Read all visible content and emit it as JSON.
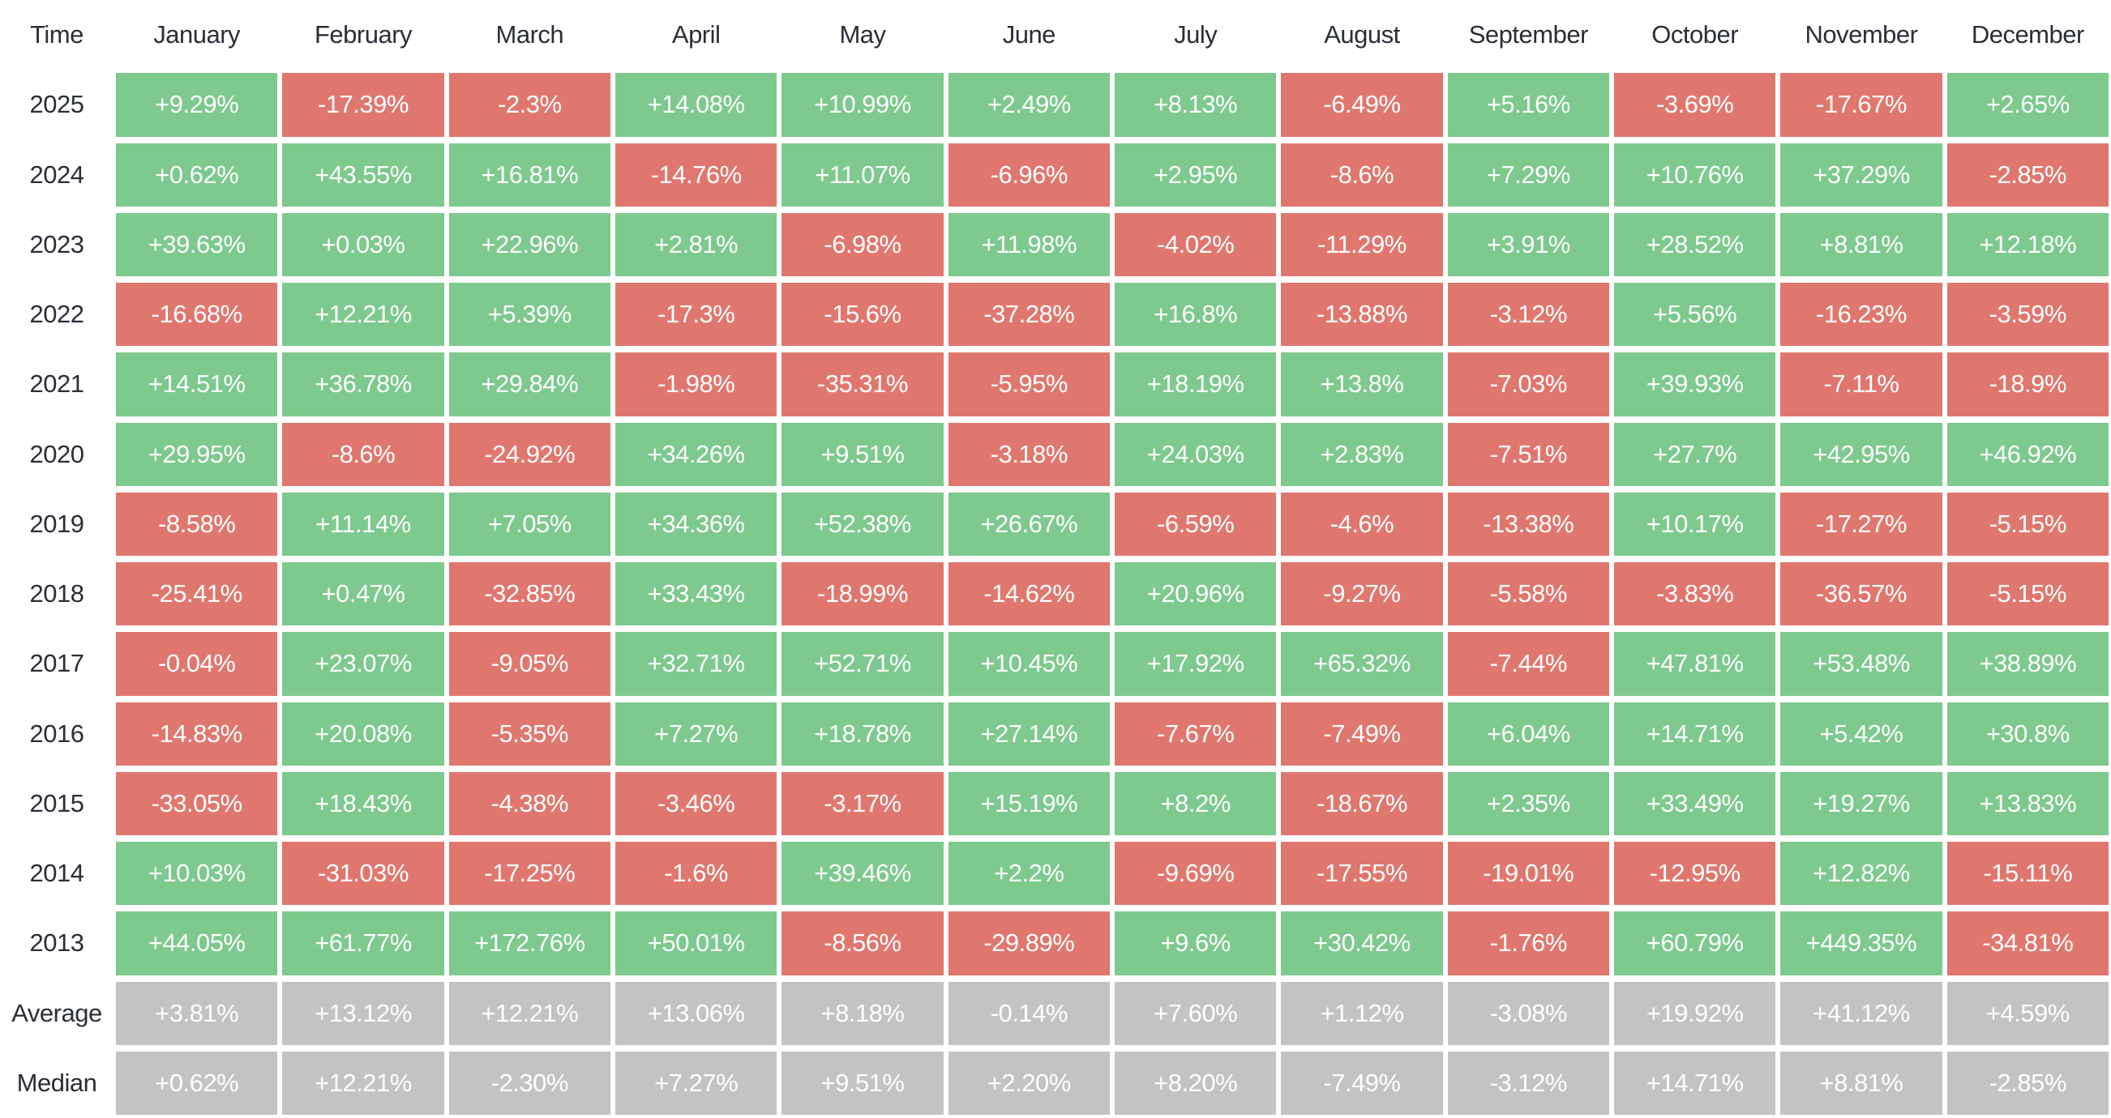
{
  "chart_data": {
    "type": "heatmap",
    "columns": [
      "Time",
      "January",
      "February",
      "March",
      "April",
      "May",
      "June",
      "July",
      "August",
      "September",
      "October",
      "November",
      "December"
    ],
    "rows": [
      {
        "label": "2025",
        "type": "year",
        "values": [
          "+9.29%",
          "-17.39%",
          "-2.3%",
          "+14.08%",
          "+10.99%",
          "+2.49%",
          "+8.13%",
          "-6.49%",
          "+5.16%",
          "-3.69%",
          "-17.67%",
          "+2.65%"
        ]
      },
      {
        "label": "2024",
        "type": "year",
        "values": [
          "+0.62%",
          "+43.55%",
          "+16.81%",
          "-14.76%",
          "+11.07%",
          "-6.96%",
          "+2.95%",
          "-8.6%",
          "+7.29%",
          "+10.76%",
          "+37.29%",
          "-2.85%"
        ]
      },
      {
        "label": "2023",
        "type": "year",
        "values": [
          "+39.63%",
          "+0.03%",
          "+22.96%",
          "+2.81%",
          "-6.98%",
          "+11.98%",
          "-4.02%",
          "-11.29%",
          "+3.91%",
          "+28.52%",
          "+8.81%",
          "+12.18%"
        ]
      },
      {
        "label": "2022",
        "type": "year",
        "values": [
          "-16.68%",
          "+12.21%",
          "+5.39%",
          "-17.3%",
          "-15.6%",
          "-37.28%",
          "+16.8%",
          "-13.88%",
          "-3.12%",
          "+5.56%",
          "-16.23%",
          "-3.59%"
        ]
      },
      {
        "label": "2021",
        "type": "year",
        "values": [
          "+14.51%",
          "+36.78%",
          "+29.84%",
          "-1.98%",
          "-35.31%",
          "-5.95%",
          "+18.19%",
          "+13.8%",
          "-7.03%",
          "+39.93%",
          "-7.11%",
          "-18.9%"
        ]
      },
      {
        "label": "2020",
        "type": "year",
        "values": [
          "+29.95%",
          "-8.6%",
          "-24.92%",
          "+34.26%",
          "+9.51%",
          "-3.18%",
          "+24.03%",
          "+2.83%",
          "-7.51%",
          "+27.7%",
          "+42.95%",
          "+46.92%"
        ]
      },
      {
        "label": "2019",
        "type": "year",
        "values": [
          "-8.58%",
          "+11.14%",
          "+7.05%",
          "+34.36%",
          "+52.38%",
          "+26.67%",
          "-6.59%",
          "-4.6%",
          "-13.38%",
          "+10.17%",
          "-17.27%",
          "-5.15%"
        ]
      },
      {
        "label": "2018",
        "type": "year",
        "values": [
          "-25.41%",
          "+0.47%",
          "-32.85%",
          "+33.43%",
          "-18.99%",
          "-14.62%",
          "+20.96%",
          "-9.27%",
          "-5.58%",
          "-3.83%",
          "-36.57%",
          "-5.15%"
        ]
      },
      {
        "label": "2017",
        "type": "year",
        "values": [
          "-0.04%",
          "+23.07%",
          "-9.05%",
          "+32.71%",
          "+52.71%",
          "+10.45%",
          "+17.92%",
          "+65.32%",
          "-7.44%",
          "+47.81%",
          "+53.48%",
          "+38.89%"
        ]
      },
      {
        "label": "2016",
        "type": "year",
        "values": [
          "-14.83%",
          "+20.08%",
          "-5.35%",
          "+7.27%",
          "+18.78%",
          "+27.14%",
          "-7.67%",
          "-7.49%",
          "+6.04%",
          "+14.71%",
          "+5.42%",
          "+30.8%"
        ]
      },
      {
        "label": "2015",
        "type": "year",
        "values": [
          "-33.05%",
          "+18.43%",
          "-4.38%",
          "-3.46%",
          "-3.17%",
          "+15.19%",
          "+8.2%",
          "-18.67%",
          "+2.35%",
          "+33.49%",
          "+19.27%",
          "+13.83%"
        ]
      },
      {
        "label": "2014",
        "type": "year",
        "values": [
          "+10.03%",
          "-31.03%",
          "-17.25%",
          "-1.6%",
          "+39.46%",
          "+2.2%",
          "-9.69%",
          "-17.55%",
          "-19.01%",
          "-12.95%",
          "+12.82%",
          "-15.11%"
        ]
      },
      {
        "label": "2013",
        "type": "year",
        "values": [
          "+44.05%",
          "+61.77%",
          "+172.76%",
          "+50.01%",
          "-8.56%",
          "-29.89%",
          "+9.6%",
          "+30.42%",
          "-1.76%",
          "+60.79%",
          "+449.35%",
          "-34.81%"
        ]
      },
      {
        "label": "Average",
        "type": "summary",
        "values": [
          "+3.81%",
          "+13.12%",
          "+12.21%",
          "+13.06%",
          "+8.18%",
          "-0.14%",
          "+7.60%",
          "+1.12%",
          "-3.08%",
          "+19.92%",
          "+41.12%",
          "+4.59%"
        ]
      },
      {
        "label": "Median",
        "type": "summary",
        "values": [
          "+0.62%",
          "+12.21%",
          "-2.30%",
          "+7.27%",
          "+9.51%",
          "+2.20%",
          "+8.20%",
          "-7.49%",
          "-3.12%",
          "+14.71%",
          "+8.81%",
          "-2.85%"
        ]
      }
    ],
    "legend_position": "none",
    "grid": false,
    "colors": {
      "positive_cell": "#7dc98e",
      "negative_cell": "#e0776e",
      "summary_cell": "#c3c3c3",
      "label_text": "#2a2e39",
      "cell_text": "#ffffff",
      "background": "#ffffff"
    }
  }
}
